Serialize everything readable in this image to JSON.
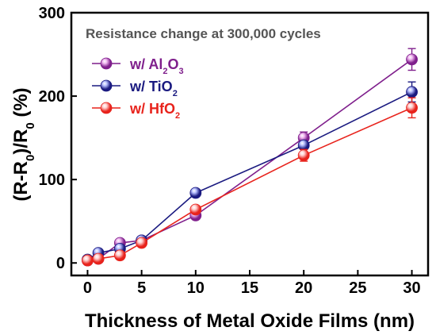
{
  "chart_data": {
    "type": "line",
    "title": "",
    "annotation": "Resistance change at 300,000 cycles",
    "xlabel": "Thickness of Metal Oxide Films (nm)",
    "ylabel_parts": [
      {
        "text": "(R-R",
        "sub": false
      },
      {
        "text": "0",
        "sub": true
      },
      {
        "text": ")/R",
        "sub": false
      },
      {
        "text": "0",
        "sub": true
      },
      {
        "text": " (%)",
        "sub": false
      }
    ],
    "xlim": [
      -1.5,
      31.5
    ],
    "ylim": [
      -15,
      300
    ],
    "x_ticks": [
      0,
      5,
      10,
      15,
      20,
      25,
      30
    ],
    "x_tick_labels": [
      "0",
      "5",
      "10",
      "15",
      "20",
      "25",
      "30"
    ],
    "y_ticks": [
      0,
      100,
      200,
      300
    ],
    "y_tick_labels": [
      "0",
      "100",
      "200",
      "300"
    ],
    "x": [
      0,
      1,
      3,
      5,
      10,
      20,
      30
    ],
    "legend_position": "top-left",
    "series": [
      {
        "name": "w/ Al2O3",
        "name_parts": [
          {
            "text": "w/ Al",
            "sub": false
          },
          {
            "text": "2",
            "sub": true
          },
          {
            "text": "O",
            "sub": false
          },
          {
            "text": "3",
            "sub": true
          }
        ],
        "color": "#7f1f8c",
        "highlight": "#f0b8f0",
        "values": [
          3,
          5,
          24,
          27,
          57,
          150,
          244
        ],
        "errors": [
          0,
          0,
          3,
          3,
          3,
          7,
          13
        ]
      },
      {
        "name": "w/ TiO2",
        "name_parts": [
          {
            "text": "w/ TiO",
            "sub": false
          },
          {
            "text": "2",
            "sub": true
          }
        ],
        "color": "#1a1a80",
        "highlight": "#b8c0ff",
        "values": [
          4,
          12,
          17,
          27,
          84,
          141,
          205
        ],
        "errors": [
          0,
          0,
          2,
          2,
          2,
          5,
          12
        ]
      },
      {
        "name": "w/ HfO2",
        "name_parts": [
          {
            "text": "w/ HfO",
            "sub": false
          },
          {
            "text": "2",
            "sub": true
          }
        ],
        "color": "#e8231c",
        "highlight": "#ffd0d0",
        "values": [
          3,
          5,
          9,
          24,
          64,
          129,
          186
        ],
        "errors": [
          0,
          0,
          2,
          2,
          3,
          7,
          12
        ]
      }
    ]
  }
}
